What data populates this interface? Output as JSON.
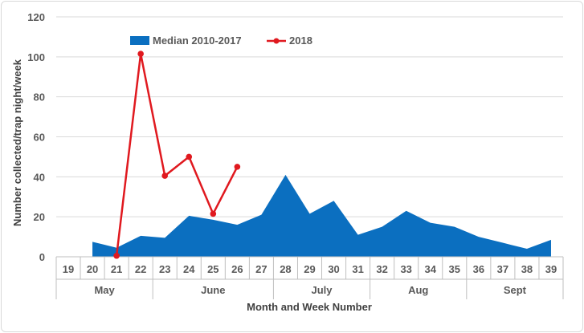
{
  "chart_data": {
    "type": "area",
    "title": "",
    "xlabel": "Month and Week Number",
    "ylabel": "Number collected/trap night/week",
    "ylim": [
      0,
      120
    ],
    "yticks": [
      0,
      20,
      40,
      60,
      80,
      100,
      120
    ],
    "grid": true,
    "legend_position": "top-left",
    "categories": [
      "19",
      "20",
      "21",
      "22",
      "23",
      "24",
      "25",
      "26",
      "27",
      "28",
      "29",
      "30",
      "31",
      "32",
      "33",
      "34",
      "35",
      "36",
      "37",
      "38",
      "39"
    ],
    "months": [
      {
        "label": "May",
        "weeks": [
          "19",
          "20",
          "21",
          "22"
        ]
      },
      {
        "label": "June",
        "weeks": [
          "23",
          "24",
          "25",
          "26",
          "27"
        ]
      },
      {
        "label": "July",
        "weeks": [
          "28",
          "29",
          "30",
          "31"
        ]
      },
      {
        "label": "Aug",
        "weeks": [
          "32",
          "33",
          "34",
          "35"
        ]
      },
      {
        "label": "Sept",
        "weeks": [
          "36",
          "37",
          "38",
          "39"
        ]
      }
    ],
    "series": [
      {
        "name": "Median 2010-2017",
        "type": "area",
        "color": "#0b6fc0",
        "values": [
          null,
          7.5,
          4.5,
          10.5,
          9.5,
          20.5,
          18.5,
          16,
          21,
          41,
          21.5,
          28,
          11,
          15,
          23,
          17,
          15,
          10,
          7,
          4,
          8.5
        ]
      },
      {
        "name": "2018",
        "type": "line",
        "color": "#e0191f",
        "values": [
          null,
          null,
          0.5,
          101.5,
          40.5,
          50,
          21.5,
          45,
          null,
          null,
          null,
          null,
          null,
          null,
          null,
          null,
          null,
          null,
          null,
          null,
          null
        ]
      }
    ]
  }
}
